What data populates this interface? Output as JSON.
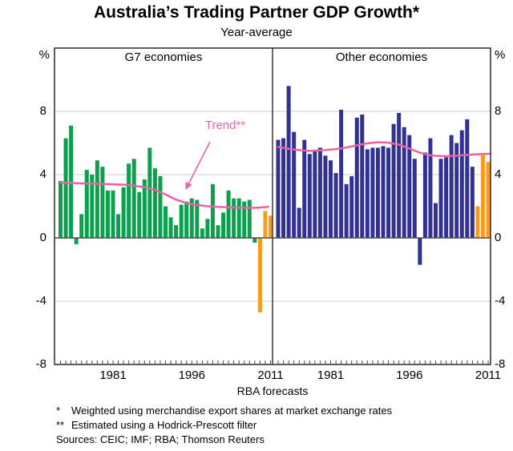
{
  "title": "Australia’s Trading Partner GDP Growth*",
  "subtitle": "Year-average",
  "panel_labels": {
    "left": "G7 economies",
    "right": "Other economies"
  },
  "trend_label": "Trend**",
  "forecast_label": "RBA forecasts",
  "unit_label": "%",
  "footnotes": {
    "line1": {
      "marker": "*",
      "text": "Weighted using merchandise export shares at market exchange rates"
    },
    "line2": {
      "marker": "**",
      "text": "Estimated using a Hodrick-Prescott filter"
    },
    "line3": {
      "text": "Sources: CEIC; IMF; RBA; Thomson Reuters"
    }
  },
  "axes": {
    "unit": "%",
    "ylim": [
      -8,
      12
    ],
    "yticks": [
      {
        "label": "8",
        "value": 8
      },
      {
        "label": "4",
        "value": 4
      },
      {
        "label": "0",
        "value": 0
      },
      {
        "label": "-4",
        "value": -4
      },
      {
        "label": "-8",
        "value": -8
      }
    ],
    "gridline_values": [
      8,
      4,
      -4
    ],
    "xticks": [
      {
        "label": "1981",
        "year": 1981
      },
      {
        "label": "1996",
        "year": 1996
      },
      {
        "label": "2011",
        "year": 2011
      }
    ]
  },
  "colors": {
    "g7_bar": "#0aa04d",
    "other_bar": "#313193",
    "forecast_bar": "#f99b1c",
    "trend_line": "#ec63a2",
    "gridline": "#cccccc",
    "zero_line": "#4d4d4d",
    "border": "#383838",
    "tick": "#4d4d4d",
    "text": "#000000"
  },
  "chart_data": [
    {
      "type": "bar",
      "title": "G7 economies",
      "ylabel": "%",
      "ylim": [
        -8,
        12
      ],
      "categories": [
        1971,
        1972,
        1973,
        1974,
        1975,
        1976,
        1977,
        1978,
        1979,
        1980,
        1981,
        1982,
        1983,
        1984,
        1985,
        1986,
        1987,
        1988,
        1989,
        1990,
        1991,
        1992,
        1993,
        1994,
        1995,
        1996,
        1997,
        1998,
        1999,
        2000,
        2001,
        2002,
        2003,
        2004,
        2005,
        2006,
        2007,
        2008,
        2009,
        2010,
        2011
      ],
      "values": [
        3.6,
        6.3,
        7.1,
        -0.4,
        1.5,
        4.3,
        4.0,
        4.9,
        4.5,
        3.0,
        3.0,
        1.5,
        3.2,
        4.7,
        5.0,
        2.9,
        3.7,
        5.7,
        4.4,
        3.9,
        2.0,
        1.3,
        0.8,
        2.1,
        2.3,
        2.5,
        2.4,
        0.6,
        1.2,
        3.4,
        0.8,
        1.6,
        3.0,
        2.5,
        2.5,
        2.3,
        2.4,
        -0.3,
        -4.7,
        1.7,
        1.4
      ],
      "forecast_start_year": 2009,
      "trend": [
        [
          1971,
          3.5
        ],
        [
          1974,
          3.46
        ],
        [
          1977,
          3.43
        ],
        [
          1980,
          3.4
        ],
        [
          1983,
          3.36
        ],
        [
          1985,
          3.3
        ],
        [
          1987,
          3.2
        ],
        [
          1989,
          3.03
        ],
        [
          1991,
          2.75
        ],
        [
          1993,
          2.42
        ],
        [
          1995,
          2.2
        ],
        [
          1997,
          2.08
        ],
        [
          1999,
          2.0
        ],
        [
          2001,
          1.96
        ],
        [
          2004,
          1.92
        ],
        [
          2007,
          1.9
        ],
        [
          2009,
          1.92
        ],
        [
          2010.6,
          1.97
        ]
      ]
    },
    {
      "type": "bar",
      "title": "Other economies",
      "ylabel": "%",
      "ylim": [
        -8,
        12
      ],
      "categories": [
        1971,
        1972,
        1973,
        1974,
        1975,
        1976,
        1977,
        1978,
        1979,
        1980,
        1981,
        1982,
        1983,
        1984,
        1985,
        1986,
        1987,
        1988,
        1989,
        1990,
        1991,
        1992,
        1993,
        1994,
        1995,
        1996,
        1997,
        1998,
        1999,
        2000,
        2001,
        2002,
        2003,
        2004,
        2005,
        2006,
        2007,
        2008,
        2009,
        2010,
        2011
      ],
      "values": [
        6.2,
        6.3,
        9.6,
        6.7,
        1.9,
        6.2,
        5.3,
        5.5,
        5.7,
        5.2,
        4.9,
        4.1,
        8.1,
        3.4,
        3.9,
        7.6,
        7.8,
        5.6,
        5.7,
        5.7,
        5.8,
        5.7,
        7.2,
        7.9,
        7.0,
        6.5,
        5.0,
        -1.7,
        5.4,
        6.3,
        2.2,
        5.0,
        5.1,
        6.5,
        6.0,
        6.8,
        7.5,
        4.5,
        2.0,
        5.3,
        4.8
      ],
      "forecast_start_year": 2009,
      "trend": [
        [
          1971,
          5.75
        ],
        [
          1974,
          5.58
        ],
        [
          1977,
          5.5
        ],
        [
          1980,
          5.55
        ],
        [
          1983,
          5.65
        ],
        [
          1986,
          5.85
        ],
        [
          1988,
          5.98
        ],
        [
          1990,
          6.05
        ],
        [
          1992,
          6.02
        ],
        [
          1994,
          5.9
        ],
        [
          1996,
          5.65
        ],
        [
          1998,
          5.38
        ],
        [
          2000,
          5.22
        ],
        [
          2002,
          5.17
        ],
        [
          2004,
          5.18
        ],
        [
          2006,
          5.22
        ],
        [
          2008,
          5.27
        ],
        [
          2010,
          5.3
        ],
        [
          2011.7,
          5.32
        ]
      ]
    }
  ]
}
